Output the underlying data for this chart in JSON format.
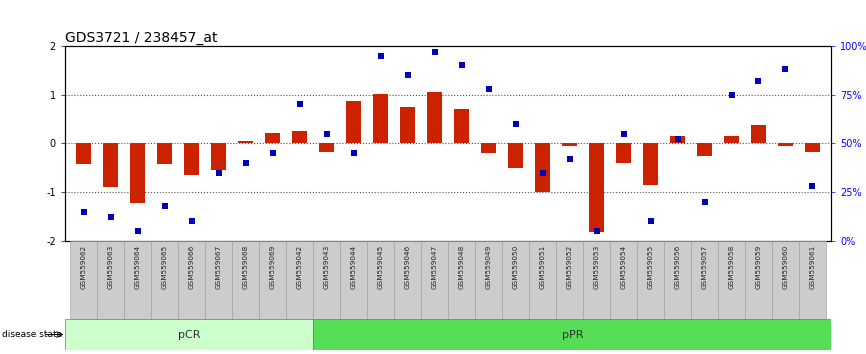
{
  "title": "GDS3721 / 238457_at",
  "samples": [
    "GSM559062",
    "GSM559063",
    "GSM559064",
    "GSM559065",
    "GSM559066",
    "GSM559067",
    "GSM559068",
    "GSM559069",
    "GSM559042",
    "GSM559043",
    "GSM559044",
    "GSM559045",
    "GSM559046",
    "GSM559047",
    "GSM559048",
    "GSM559049",
    "GSM559050",
    "GSM559051",
    "GSM559052",
    "GSM559053",
    "GSM559054",
    "GSM559055",
    "GSM559056",
    "GSM559057",
    "GSM559058",
    "GSM559059",
    "GSM559060",
    "GSM559061"
  ],
  "bar_values": [
    -0.42,
    -0.9,
    -1.22,
    -0.42,
    -0.65,
    -0.55,
    0.05,
    0.22,
    0.25,
    -0.18,
    0.88,
    1.02,
    0.75,
    1.05,
    0.7,
    -0.2,
    -0.5,
    -1.0,
    -0.05,
    -1.82,
    -0.4,
    -0.85,
    0.15,
    -0.25,
    0.15,
    0.38,
    -0.05,
    -0.18
  ],
  "percentile_values": [
    15,
    12,
    5,
    18,
    10,
    35,
    40,
    45,
    70,
    55,
    45,
    95,
    85,
    97,
    90,
    78,
    60,
    35,
    42,
    5,
    55,
    10,
    52,
    20,
    75,
    82,
    88,
    28
  ],
  "pCR_count": 9,
  "pPR_count": 19,
  "ylim": [
    -2,
    2
  ],
  "y2lim": [
    0,
    100
  ],
  "bar_color": "#cc2200",
  "dot_color": "#0000bb",
  "pCR_color": "#ccffcc",
  "pPR_color": "#55dd55",
  "xtick_bg": "#cccccc",
  "xtick_edge": "#999999",
  "label_color": "#333333",
  "dotted_line_color": "#555555",
  "zero_line_color": "#cc2200",
  "background_color": "#ffffff",
  "title_fontsize": 10,
  "tick_fontsize": 7,
  "bar_width": 0.55,
  "dot_size": 18,
  "yticks": [
    -2,
    -1,
    0,
    1,
    2
  ],
  "y2ticks": [
    0,
    25,
    50,
    75,
    100
  ],
  "y2ticklabels": [
    "0%",
    "25%",
    "50%",
    "75%",
    "100%"
  ]
}
